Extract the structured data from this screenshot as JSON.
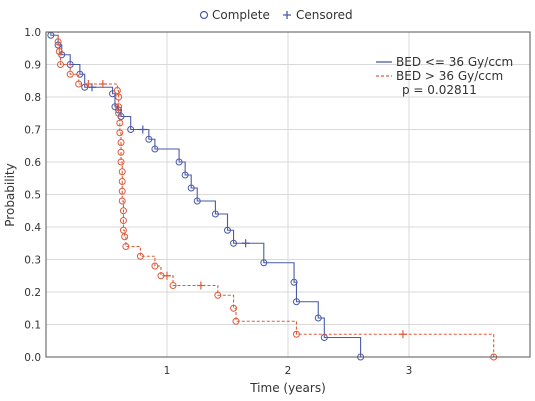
{
  "chart_data": {
    "type": "line",
    "xlabel": "Time (years)",
    "ylabel": "Probability",
    "xlim": [
      0,
      4
    ],
    "ylim": [
      0,
      1
    ],
    "x_ticks": [
      1,
      2,
      3
    ],
    "y_ticks": [
      0.0,
      0.1,
      0.2,
      0.3,
      0.4,
      0.5,
      0.6,
      0.7,
      0.8,
      0.9,
      1.0
    ],
    "y_tick_labels": [
      "0.0",
      "0.1",
      "0.2",
      "0.3",
      "0.4",
      "0.5",
      "0.6",
      "0.7",
      "0.8",
      "0.9",
      "1.0"
    ],
    "grid": true,
    "top_legend": {
      "complete_label": "Complete",
      "censored_label": "Censored",
      "placement": "top-center"
    },
    "series_legend_placement": "top-right",
    "annotation": "p = 0.02811",
    "series": [
      {
        "name": "BED <= 36 Gy/ccm",
        "color": "#4a5aa8",
        "line_style": "solid",
        "steps": [
          [
            0.0,
            1.0
          ],
          [
            0.04,
            0.99
          ],
          [
            0.1,
            0.96
          ],
          [
            0.13,
            0.93
          ],
          [
            0.2,
            0.9
          ],
          [
            0.28,
            0.87
          ],
          [
            0.32,
            0.83
          ],
          [
            0.55,
            0.81
          ],
          [
            0.57,
            0.77
          ],
          [
            0.6,
            0.76
          ],
          [
            0.62,
            0.74
          ],
          [
            0.7,
            0.7
          ],
          [
            0.85,
            0.67
          ],
          [
            0.9,
            0.64
          ],
          [
            1.1,
            0.6
          ],
          [
            1.15,
            0.56
          ],
          [
            1.2,
            0.52
          ],
          [
            1.25,
            0.48
          ],
          [
            1.4,
            0.44
          ],
          [
            1.5,
            0.39
          ],
          [
            1.55,
            0.35
          ],
          [
            1.8,
            0.29
          ],
          [
            2.05,
            0.23
          ],
          [
            2.07,
            0.17
          ],
          [
            2.25,
            0.12
          ],
          [
            2.3,
            0.06
          ],
          [
            2.6,
            0.0
          ]
        ],
        "events": [
          [
            0.04,
            0.99
          ],
          [
            0.1,
            0.96
          ],
          [
            0.13,
            0.93
          ],
          [
            0.2,
            0.9
          ],
          [
            0.28,
            0.87
          ],
          [
            0.32,
            0.83
          ],
          [
            0.55,
            0.81
          ],
          [
            0.57,
            0.77
          ],
          [
            0.6,
            0.76
          ],
          [
            0.62,
            0.74
          ],
          [
            0.7,
            0.7
          ],
          [
            0.85,
            0.67
          ],
          [
            0.9,
            0.64
          ],
          [
            1.1,
            0.6
          ],
          [
            1.15,
            0.56
          ],
          [
            1.2,
            0.52
          ],
          [
            1.25,
            0.48
          ],
          [
            1.4,
            0.44
          ],
          [
            1.5,
            0.39
          ],
          [
            1.55,
            0.35
          ],
          [
            1.8,
            0.29
          ],
          [
            2.05,
            0.23
          ],
          [
            2.07,
            0.17
          ],
          [
            2.25,
            0.12
          ],
          [
            2.3,
            0.06
          ],
          [
            2.6,
            0.0
          ]
        ],
        "censored": [
          [
            0.38,
            0.83
          ],
          [
            0.8,
            0.7
          ],
          [
            1.65,
            0.35
          ]
        ]
      },
      {
        "name": "BED > 36 Gy/ccm",
        "color": "#e05a3a",
        "line_style": "dashed",
        "steps": [
          [
            0.0,
            1.0
          ],
          [
            0.1,
            0.97
          ],
          [
            0.11,
            0.94
          ],
          [
            0.12,
            0.9
          ],
          [
            0.2,
            0.87
          ],
          [
            0.27,
            0.84
          ],
          [
            0.59,
            0.82
          ],
          [
            0.6,
            0.8
          ],
          [
            0.6,
            0.77
          ],
          [
            0.6,
            0.75
          ],
          [
            0.61,
            0.72
          ],
          [
            0.61,
            0.69
          ],
          [
            0.62,
            0.66
          ],
          [
            0.62,
            0.63
          ],
          [
            0.62,
            0.6
          ],
          [
            0.63,
            0.57
          ],
          [
            0.63,
            0.54
          ],
          [
            0.63,
            0.51
          ],
          [
            0.63,
            0.48
          ],
          [
            0.64,
            0.45
          ],
          [
            0.64,
            0.42
          ],
          [
            0.64,
            0.39
          ],
          [
            0.65,
            0.37
          ],
          [
            0.66,
            0.34
          ],
          [
            0.78,
            0.31
          ],
          [
            0.9,
            0.28
          ],
          [
            0.95,
            0.25
          ],
          [
            1.05,
            0.22
          ],
          [
            1.42,
            0.19
          ],
          [
            1.55,
            0.15
          ],
          [
            1.57,
            0.11
          ],
          [
            2.07,
            0.07
          ],
          [
            3.7,
            0.0
          ]
        ],
        "events": [
          [
            0.1,
            0.97
          ],
          [
            0.11,
            0.94
          ],
          [
            0.12,
            0.9
          ],
          [
            0.2,
            0.87
          ],
          [
            0.27,
            0.84
          ],
          [
            0.59,
            0.82
          ],
          [
            0.6,
            0.8
          ],
          [
            0.6,
            0.77
          ],
          [
            0.6,
            0.75
          ],
          [
            0.61,
            0.72
          ],
          [
            0.61,
            0.69
          ],
          [
            0.62,
            0.66
          ],
          [
            0.62,
            0.63
          ],
          [
            0.62,
            0.6
          ],
          [
            0.63,
            0.57
          ],
          [
            0.63,
            0.54
          ],
          [
            0.63,
            0.51
          ],
          [
            0.63,
            0.48
          ],
          [
            0.64,
            0.45
          ],
          [
            0.64,
            0.42
          ],
          [
            0.64,
            0.39
          ],
          [
            0.65,
            0.37
          ],
          [
            0.66,
            0.34
          ],
          [
            0.78,
            0.31
          ],
          [
            0.9,
            0.28
          ],
          [
            0.95,
            0.25
          ],
          [
            1.05,
            0.22
          ],
          [
            1.42,
            0.19
          ],
          [
            1.55,
            0.15
          ],
          [
            1.57,
            0.11
          ],
          [
            2.07,
            0.07
          ],
          [
            3.7,
            0.0
          ]
        ],
        "censored": [
          [
            0.35,
            0.84
          ],
          [
            0.47,
            0.84
          ],
          [
            1.0,
            0.25
          ],
          [
            1.28,
            0.22
          ],
          [
            2.95,
            0.07
          ]
        ]
      }
    ]
  }
}
